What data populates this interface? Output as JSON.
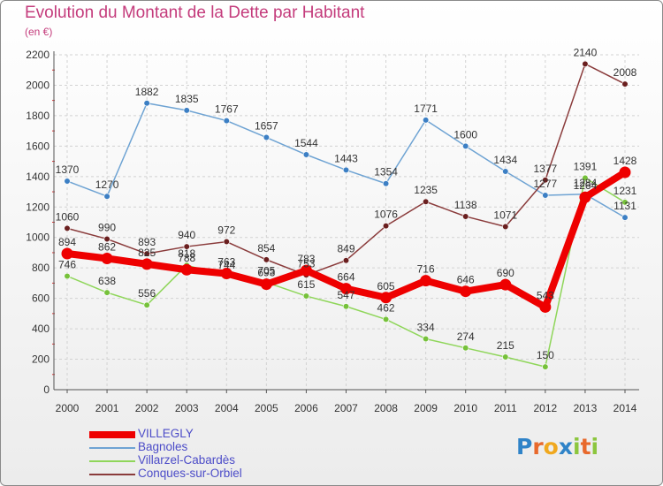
{
  "title": "Evolution du Montant de la Dette par Habitant",
  "unit_label": "(en €)",
  "brand": {
    "letters": [
      {
        "char": "P",
        "color": "#2f83c8"
      },
      {
        "char": "r",
        "color": "#e8692c"
      },
      {
        "char": "o",
        "color": "#f0a81e"
      },
      {
        "char": "x",
        "color": "#2f83c8"
      },
      {
        "char": "i",
        "color": "#8cc63e"
      },
      {
        "char": "t",
        "color": "#e8692c"
      },
      {
        "char": "i",
        "color": "#8cc63e"
      }
    ]
  },
  "chart_data": {
    "type": "line",
    "x": [
      "2000",
      "2001",
      "2002",
      "2003",
      "2004",
      "2005",
      "2006",
      "2007",
      "2008",
      "2009",
      "2010",
      "2011",
      "2012",
      "2013",
      "2014"
    ],
    "ylim": [
      0,
      2200
    ],
    "yticks": [
      0,
      200,
      400,
      600,
      800,
      1000,
      1200,
      1400,
      1600,
      1800,
      2000,
      2200
    ],
    "grid": true,
    "legend_position": "bottom-left",
    "series": [
      {
        "name": "VILLEGLY",
        "color": "#ee0000",
        "point_color": "#ee0000",
        "values": [
          894,
          862,
          825,
          788,
          763,
          693,
          783,
          664,
          605,
          716,
          646,
          690,
          543,
          1264,
          1428
        ]
      },
      {
        "name": "Bagnoles",
        "color": "#6ea3d3",
        "point_color": "#3c7fc4",
        "values": [
          1370,
          1270,
          1882,
          1835,
          1767,
          1657,
          1544,
          1443,
          1354,
          1771,
          1600,
          1434,
          1277,
          1284,
          1131
        ]
      },
      {
        "name": "Villarzel-Cabardès",
        "color": "#8fd65a",
        "point_color": "#76c13a",
        "values": [
          746,
          638,
          556,
          818,
          744,
          705,
          615,
          547,
          462,
          334,
          274,
          215,
          150,
          1391,
          1231
        ]
      },
      {
        "name": "Conques-sur-Orbiel",
        "color": "#8a3b3b",
        "point_color": "#6a1f1f",
        "values": [
          1060,
          990,
          893,
          940,
          972,
          854,
          753,
          849,
          1076,
          1235,
          1138,
          1071,
          1377,
          2140,
          2008
        ]
      }
    ]
  }
}
